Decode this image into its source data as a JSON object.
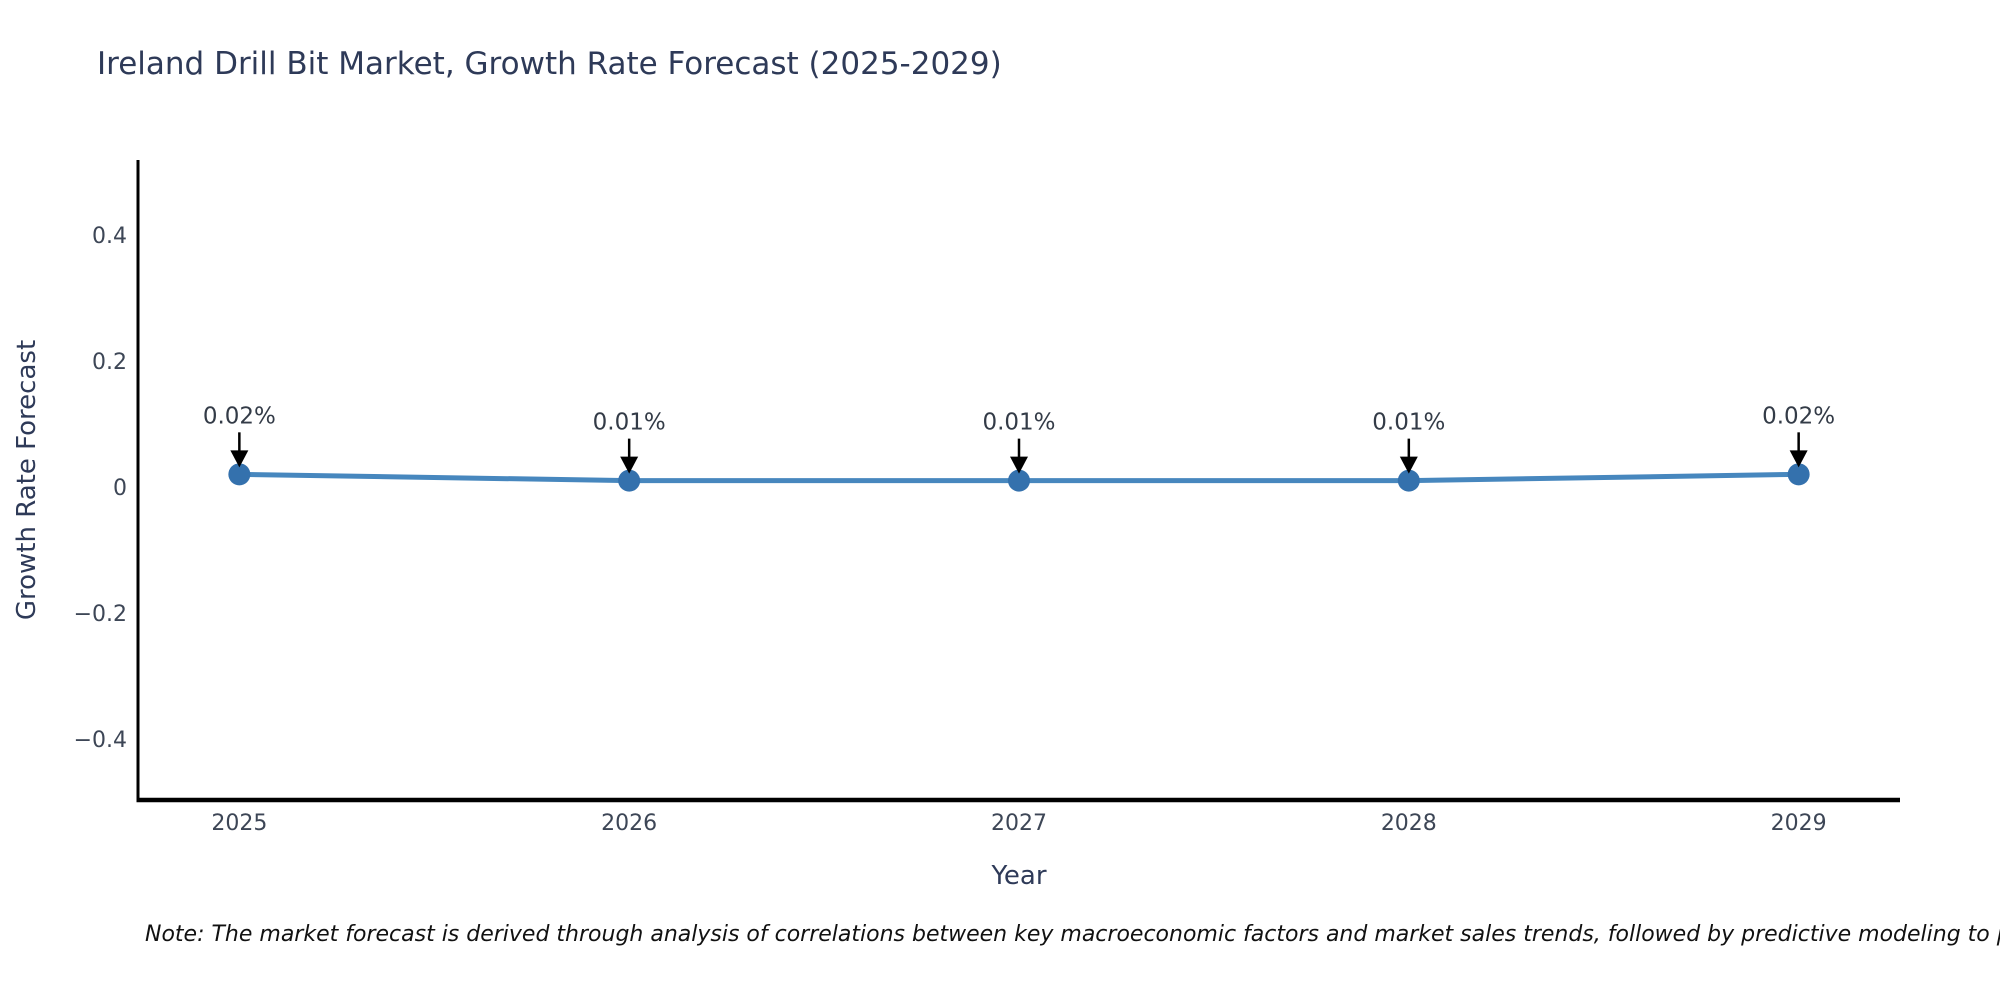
{
  "note": "Note: The market forecast is derived through analysis of correlations between key macroeconomic factors and market sales trends, followed by predictive modeling to project future sal",
  "chart_data": {
    "type": "line",
    "title": "Ireland Drill Bit Market, Growth Rate Forecast (2025-2029)",
    "xlabel": "Year",
    "ylabel": "Growth Rate Forecast",
    "x": [
      2025,
      2026,
      2027,
      2028,
      2029
    ],
    "values": [
      0.02,
      0.01,
      0.01,
      0.01,
      0.02
    ],
    "point_labels": [
      "0.02%",
      "0.01%",
      "0.01%",
      "0.01%",
      "0.02%"
    ],
    "xticks": {
      "values": [
        2025,
        2026,
        2027,
        2028,
        2029
      ],
      "labels": [
        "2025",
        "2026",
        "2027",
        "2028",
        "2029"
      ]
    },
    "yticks": {
      "values": [
        0.4,
        0.2,
        0,
        -0.2,
        -0.4
      ],
      "labels": [
        "0.4",
        "0.2",
        "0",
        "−0.2",
        "−0.4"
      ]
    },
    "xlim": [
      2024.74,
      2029.26
    ],
    "ylim": [
      -0.497,
      0.519
    ],
    "grid": false,
    "legend": null,
    "marker_style": "circle",
    "annotation_arrows": true,
    "colors": {
      "line": "#4787be",
      "marker": "#3471ad",
      "axis": "#000000",
      "tick_text": "#3d4656",
      "annotation_text": "#333b47",
      "arrow": "#000000",
      "title_text": "#2e3a58",
      "background": "#ffffff"
    }
  }
}
